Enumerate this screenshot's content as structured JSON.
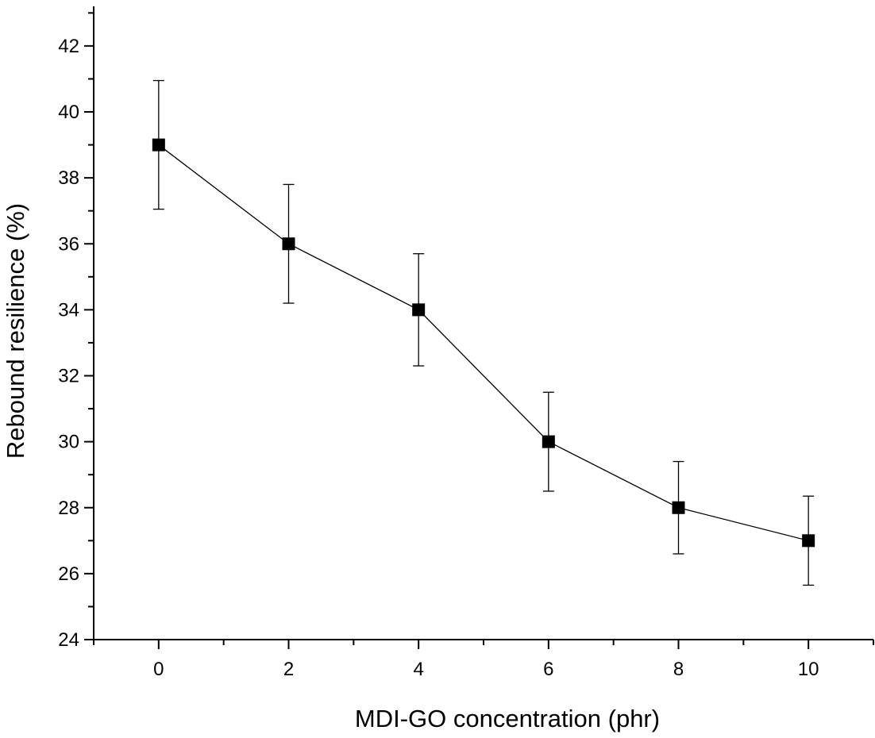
{
  "chart_data": {
    "type": "line",
    "title": "",
    "xlabel": "MDI-GO concentration (phr)",
    "ylabel": "Rebound resilience (%)",
    "xlim": [
      -1,
      11
    ],
    "ylim": [
      24,
      43.2
    ],
    "x_ticks": [
      0,
      2,
      4,
      6,
      8,
      10
    ],
    "y_ticks": [
      24,
      26,
      28,
      30,
      32,
      34,
      36,
      38,
      40,
      42
    ],
    "grid": false,
    "legend": "none",
    "marker": "filled-square",
    "series_color": "#000000",
    "series": [
      {
        "x": [
          0,
          2,
          4,
          6,
          8,
          10
        ],
        "values": [
          39,
          36,
          34,
          30,
          28,
          27
        ],
        "error": [
          1.95,
          1.8,
          1.7,
          1.5,
          1.4,
          1.35
        ]
      }
    ]
  }
}
